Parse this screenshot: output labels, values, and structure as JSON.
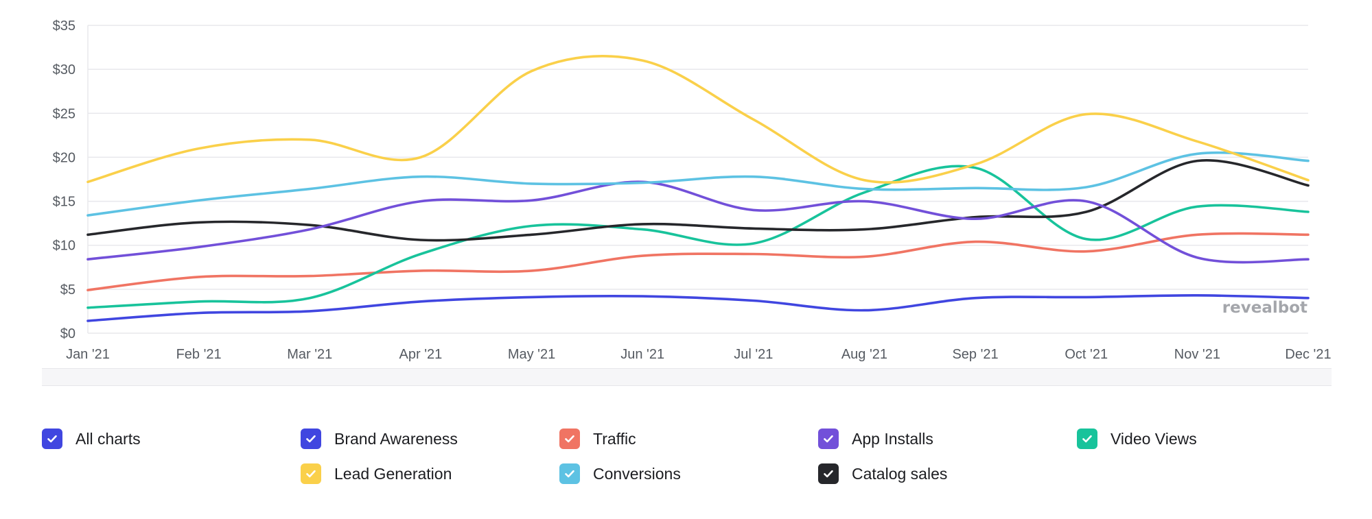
{
  "chart_data": {
    "type": "line",
    "title": "",
    "xlabel": "",
    "ylabel": "",
    "categories": [
      "Jan '21",
      "Feb '21",
      "Mar '21",
      "Apr '21",
      "May '21",
      "Jun '21",
      "Jul '21",
      "Aug '21",
      "Sep '21",
      "Oct '21",
      "Nov '21",
      "Dec '21"
    ],
    "y_ticks": [
      "$0",
      "$5",
      "$10",
      "$15",
      "$20",
      "$25",
      "$30",
      "$35"
    ],
    "ylim": [
      0,
      35
    ],
    "grid": true,
    "legend_position": "bottom",
    "series": [
      {
        "name": "Brand Awareness",
        "color": "#4046e0",
        "values": [
          1.4,
          2.3,
          2.5,
          3.6,
          4.1,
          4.2,
          3.7,
          2.6,
          4.0,
          4.1,
          4.3,
          4.0
        ]
      },
      {
        "name": "Traffic",
        "color": "#f07463",
        "values": [
          4.9,
          6.4,
          6.5,
          7.1,
          7.1,
          8.8,
          9.0,
          8.7,
          10.4,
          9.3,
          11.2,
          11.2
        ]
      },
      {
        "name": "App Installs",
        "color": "#7250d9",
        "values": [
          8.4,
          9.8,
          11.8,
          15.0,
          15.1,
          17.2,
          14.0,
          15.0,
          13.0,
          15.0,
          8.6,
          8.4
        ]
      },
      {
        "name": "Video Views",
        "color": "#18c39b",
        "values": [
          2.9,
          3.6,
          4.0,
          9.0,
          12.2,
          11.8,
          10.2,
          16.0,
          18.8,
          10.7,
          14.4,
          13.8
        ]
      },
      {
        "name": "Lead Generation",
        "color": "#fad04a",
        "values": [
          17.2,
          21.0,
          22.0,
          20.0,
          29.8,
          31.0,
          24.3,
          17.4,
          19.2,
          24.9,
          21.8,
          17.4
        ]
      },
      {
        "name": "Conversions",
        "color": "#5dc2e3",
        "values": [
          13.4,
          15.1,
          16.4,
          17.8,
          17.0,
          17.1,
          17.8,
          16.4,
          16.5,
          16.6,
          20.4,
          19.6
        ]
      },
      {
        "name": "Catalog sales",
        "color": "#26272b",
        "values": [
          11.2,
          12.6,
          12.3,
          10.6,
          11.2,
          12.4,
          11.9,
          11.8,
          13.2,
          13.8,
          19.6,
          16.8
        ]
      }
    ]
  },
  "watermark": "revealbot",
  "legend": {
    "all_label": "All charts",
    "all_color": "#4046e0"
  }
}
